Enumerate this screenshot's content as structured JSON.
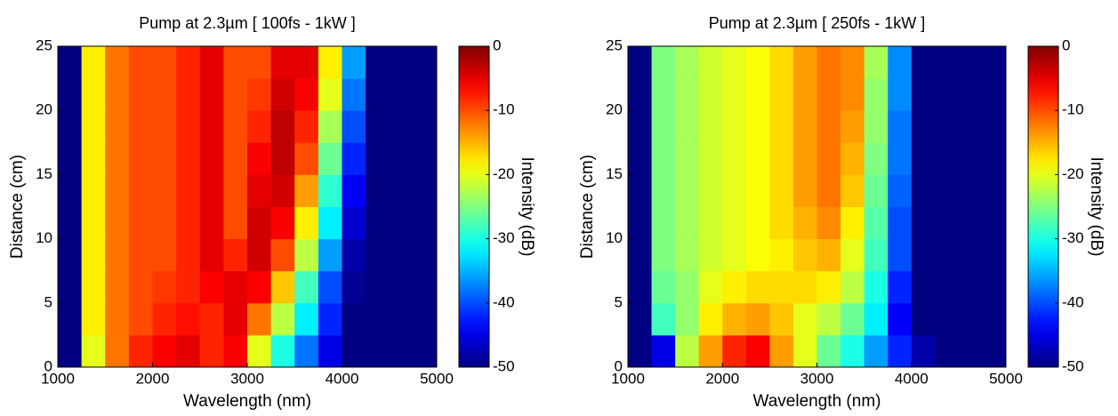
{
  "chart_data": [
    {
      "type": "heatmap",
      "title": "Pump at 2.3µm [ 100fs - 1kW ]",
      "x_label": "Wavelength (nm)",
      "y_label": "Distance (cm)",
      "colorbar_label": "Intensity (dB)",
      "xbins": [
        1000,
        1250,
        1500,
        1750,
        2000,
        2250,
        2500,
        2750,
        3000,
        3250,
        3500,
        3750,
        4000,
        4250,
        4500,
        4750,
        5000
      ],
      "ybins": [
        0,
        2.5,
        5,
        7.5,
        10,
        12.5,
        15,
        17.5,
        20,
        22.5,
        25
      ],
      "z": [
        [
          -50,
          -20,
          -12,
          -8,
          -6,
          -5,
          -8,
          -6,
          -20,
          -30,
          -38,
          -45,
          -50,
          -50,
          -50,
          -50
        ],
        [
          -50,
          -18,
          -12,
          -10,
          -8,
          -7,
          -8,
          -5,
          -12,
          -22,
          -32,
          -42,
          -50,
          -50,
          -50,
          -50
        ],
        [
          -50,
          -18,
          -12,
          -10,
          -9,
          -8,
          -6,
          -5,
          -6,
          -16,
          -28,
          -40,
          -49,
          -50,
          -50,
          -50
        ],
        [
          -50,
          -18,
          -12,
          -10,
          -10,
          -8,
          -5,
          -8,
          -4,
          -10,
          -22,
          -36,
          -48,
          -50,
          -50,
          -50
        ],
        [
          -50,
          -18,
          -12,
          -10,
          -10,
          -8,
          -5,
          -10,
          -4,
          -6,
          -18,
          -32,
          -46,
          -50,
          -50,
          -50
        ],
        [
          -50,
          -18,
          -12,
          -10,
          -10,
          -8,
          -5,
          -10,
          -5,
          -4,
          -14,
          -29,
          -44,
          -50,
          -50,
          -50
        ],
        [
          -50,
          -18,
          -12,
          -10,
          -10,
          -8,
          -5,
          -10,
          -6,
          -3,
          -10,
          -26,
          -42,
          -50,
          -50,
          -50
        ],
        [
          -50,
          -18,
          -12,
          -10,
          -10,
          -8,
          -5,
          -10,
          -8,
          -3,
          -8,
          -23,
          -40,
          -50,
          -50,
          -50
        ],
        [
          -50,
          -18,
          -12,
          -10,
          -10,
          -8,
          -5,
          -10,
          -9,
          -4,
          -6,
          -20,
          -38,
          -50,
          -50,
          -50
        ],
        [
          -50,
          -18,
          -12,
          -10,
          -10,
          -8,
          -5,
          -10,
          -10,
          -5,
          -5,
          -18,
          -36,
          -50,
          -50,
          -50
        ]
      ],
      "xlim": [
        1000,
        5000
      ],
      "xticks": [
        1000,
        2000,
        3000,
        4000,
        5000
      ],
      "ylim": [
        0,
        25
      ],
      "yticks": [
        0,
        5,
        10,
        15,
        20,
        25
      ],
      "clim": [
        -50,
        0
      ],
      "cticks": [
        -50,
        -40,
        -30,
        -20,
        -10,
        0
      ],
      "colormap": "jet"
    },
    {
      "type": "heatmap",
      "title": "Pump at 2.3µm [ 250fs - 1kW ]",
      "x_label": "Wavelength (nm)",
      "y_label": "Distance (cm)",
      "colorbar_label": "Intensity (dB)",
      "xbins": [
        1000,
        1250,
        1500,
        1750,
        2000,
        2250,
        2500,
        2750,
        3000,
        3250,
        3500,
        3750,
        4000,
        4250,
        4500,
        4750,
        5000
      ],
      "ybins": [
        0,
        2.5,
        5,
        7.5,
        10,
        12.5,
        15,
        17.5,
        20,
        22.5,
        25
      ],
      "z": [
        [
          -50,
          -45,
          -22,
          -14,
          -8,
          -6,
          -14,
          -20,
          -26,
          -30,
          -36,
          -42,
          -48,
          -50,
          -50,
          -50
        ],
        [
          -50,
          -28,
          -24,
          -18,
          -15,
          -14,
          -16,
          -20,
          -22,
          -26,
          -32,
          -44,
          -50,
          -50,
          -50,
          -50
        ],
        [
          -50,
          -26,
          -24,
          -20,
          -18,
          -17,
          -17,
          -17,
          -18,
          -22,
          -30,
          -42,
          -50,
          -50,
          -50,
          -50
        ],
        [
          -50,
          -25,
          -23,
          -21,
          -20,
          -19,
          -18,
          -16,
          -15,
          -20,
          -28,
          -40,
          -50,
          -50,
          -50,
          -50
        ],
        [
          -50,
          -25,
          -23,
          -21,
          -20,
          -19,
          -17,
          -15,
          -13,
          -18,
          -27,
          -40,
          -50,
          -50,
          -50,
          -50
        ],
        [
          -50,
          -25,
          -23,
          -21,
          -20,
          -19,
          -17,
          -14,
          -12,
          -16,
          -26,
          -39,
          -50,
          -50,
          -50,
          -50
        ],
        [
          -50,
          -25,
          -23,
          -21,
          -20,
          -19,
          -17,
          -14,
          -12,
          -15,
          -25,
          -38,
          -50,
          -50,
          -50,
          -50
        ],
        [
          -50,
          -25,
          -23,
          -21,
          -20,
          -19,
          -17,
          -14,
          -12,
          -14,
          -24,
          -38,
          -50,
          -50,
          -50,
          -50
        ],
        [
          -50,
          -25,
          -23,
          -21,
          -20,
          -19,
          -17,
          -14,
          -12,
          -13,
          -24,
          -37,
          -50,
          -50,
          -50,
          -50
        ],
        [
          -50,
          -25,
          -23,
          -21,
          -20,
          -19,
          -17,
          -14,
          -12,
          -13,
          -23,
          -37,
          -50,
          -50,
          -50,
          -50
        ]
      ],
      "xlim": [
        1000,
        5000
      ],
      "xticks": [
        1000,
        2000,
        3000,
        4000,
        5000
      ],
      "ylim": [
        0,
        25
      ],
      "yticks": [
        0,
        5,
        10,
        15,
        20,
        25
      ],
      "clim": [
        -50,
        0
      ],
      "cticks": [
        -50,
        -40,
        -30,
        -20,
        -10,
        0
      ],
      "colormap": "jet"
    }
  ]
}
